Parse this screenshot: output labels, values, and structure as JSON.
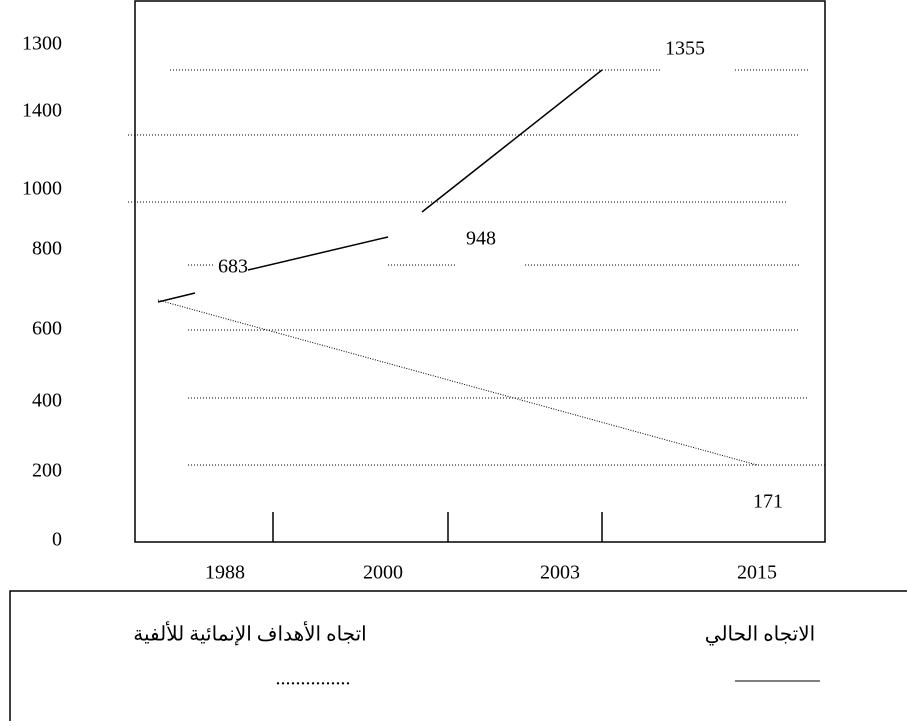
{
  "y_labels": [
    "1300",
    "1400",
    "1000",
    "800",
    "600",
    "400",
    "200",
    "0"
  ],
  "x_labels": [
    "1988",
    "2000",
    "2003",
    "2015"
  ],
  "point_labels": [
    "683",
    "948",
    "1355",
    "171"
  ],
  "legend": {
    "current_trend": "الاتجاه الحالي",
    "mdg_trend": "اتجاه الأهداف الإنمائية للألفية",
    "mdg_marker": "..............."
  }
}
